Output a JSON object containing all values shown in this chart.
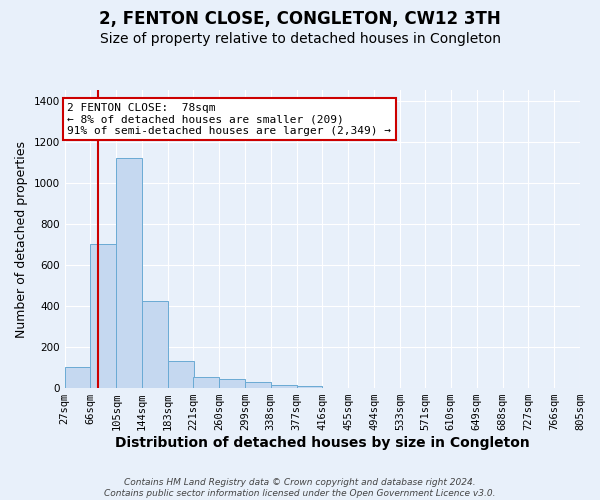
{
  "title": "2, FENTON CLOSE, CONGLETON, CW12 3TH",
  "subtitle": "Size of property relative to detached houses in Congleton",
  "xlabel": "Distribution of detached houses by size in Congleton",
  "ylabel": "Number of detached properties",
  "bin_edges": [
    27,
    66,
    105,
    144,
    183,
    221,
    260,
    299,
    338,
    377,
    416,
    455,
    494,
    533,
    571,
    610,
    649,
    688,
    727,
    766,
    805
  ],
  "bar_heights": [
    105,
    700,
    1120,
    425,
    130,
    55,
    45,
    28,
    15,
    10,
    0,
    0,
    0,
    0,
    0,
    0,
    0,
    0,
    0,
    0
  ],
  "bar_color": "#c5d8f0",
  "bar_edge_color": "#6aaad4",
  "vline_x": 78,
  "vline_color": "#cc0000",
  "annotation_text": "2 FENTON CLOSE:  78sqm\n← 8% of detached houses are smaller (209)\n91% of semi-detached houses are larger (2,349) →",
  "annotation_box_color": "white",
  "annotation_box_edge": "#cc0000",
  "ylim": [
    0,
    1450
  ],
  "yticks": [
    0,
    200,
    400,
    600,
    800,
    1000,
    1200,
    1400
  ],
  "tick_labels": [
    "27sqm",
    "66sqm",
    "105sqm",
    "144sqm",
    "183sqm",
    "221sqm",
    "260sqm",
    "299sqm",
    "338sqm",
    "377sqm",
    "416sqm",
    "455sqm",
    "494sqm",
    "533sqm",
    "571sqm",
    "610sqm",
    "649sqm",
    "688sqm",
    "727sqm",
    "766sqm",
    "805sqm"
  ],
  "footer_text": "Contains HM Land Registry data © Crown copyright and database right 2024.\nContains public sector information licensed under the Open Government Licence v3.0.",
  "bg_color": "#e8f0fa",
  "grid_color": "#ffffff",
  "title_fontsize": 12,
  "subtitle_fontsize": 10,
  "ylabel_fontsize": 9,
  "xlabel_fontsize": 10,
  "tick_fontsize": 7.5,
  "annot_fontsize": 8
}
